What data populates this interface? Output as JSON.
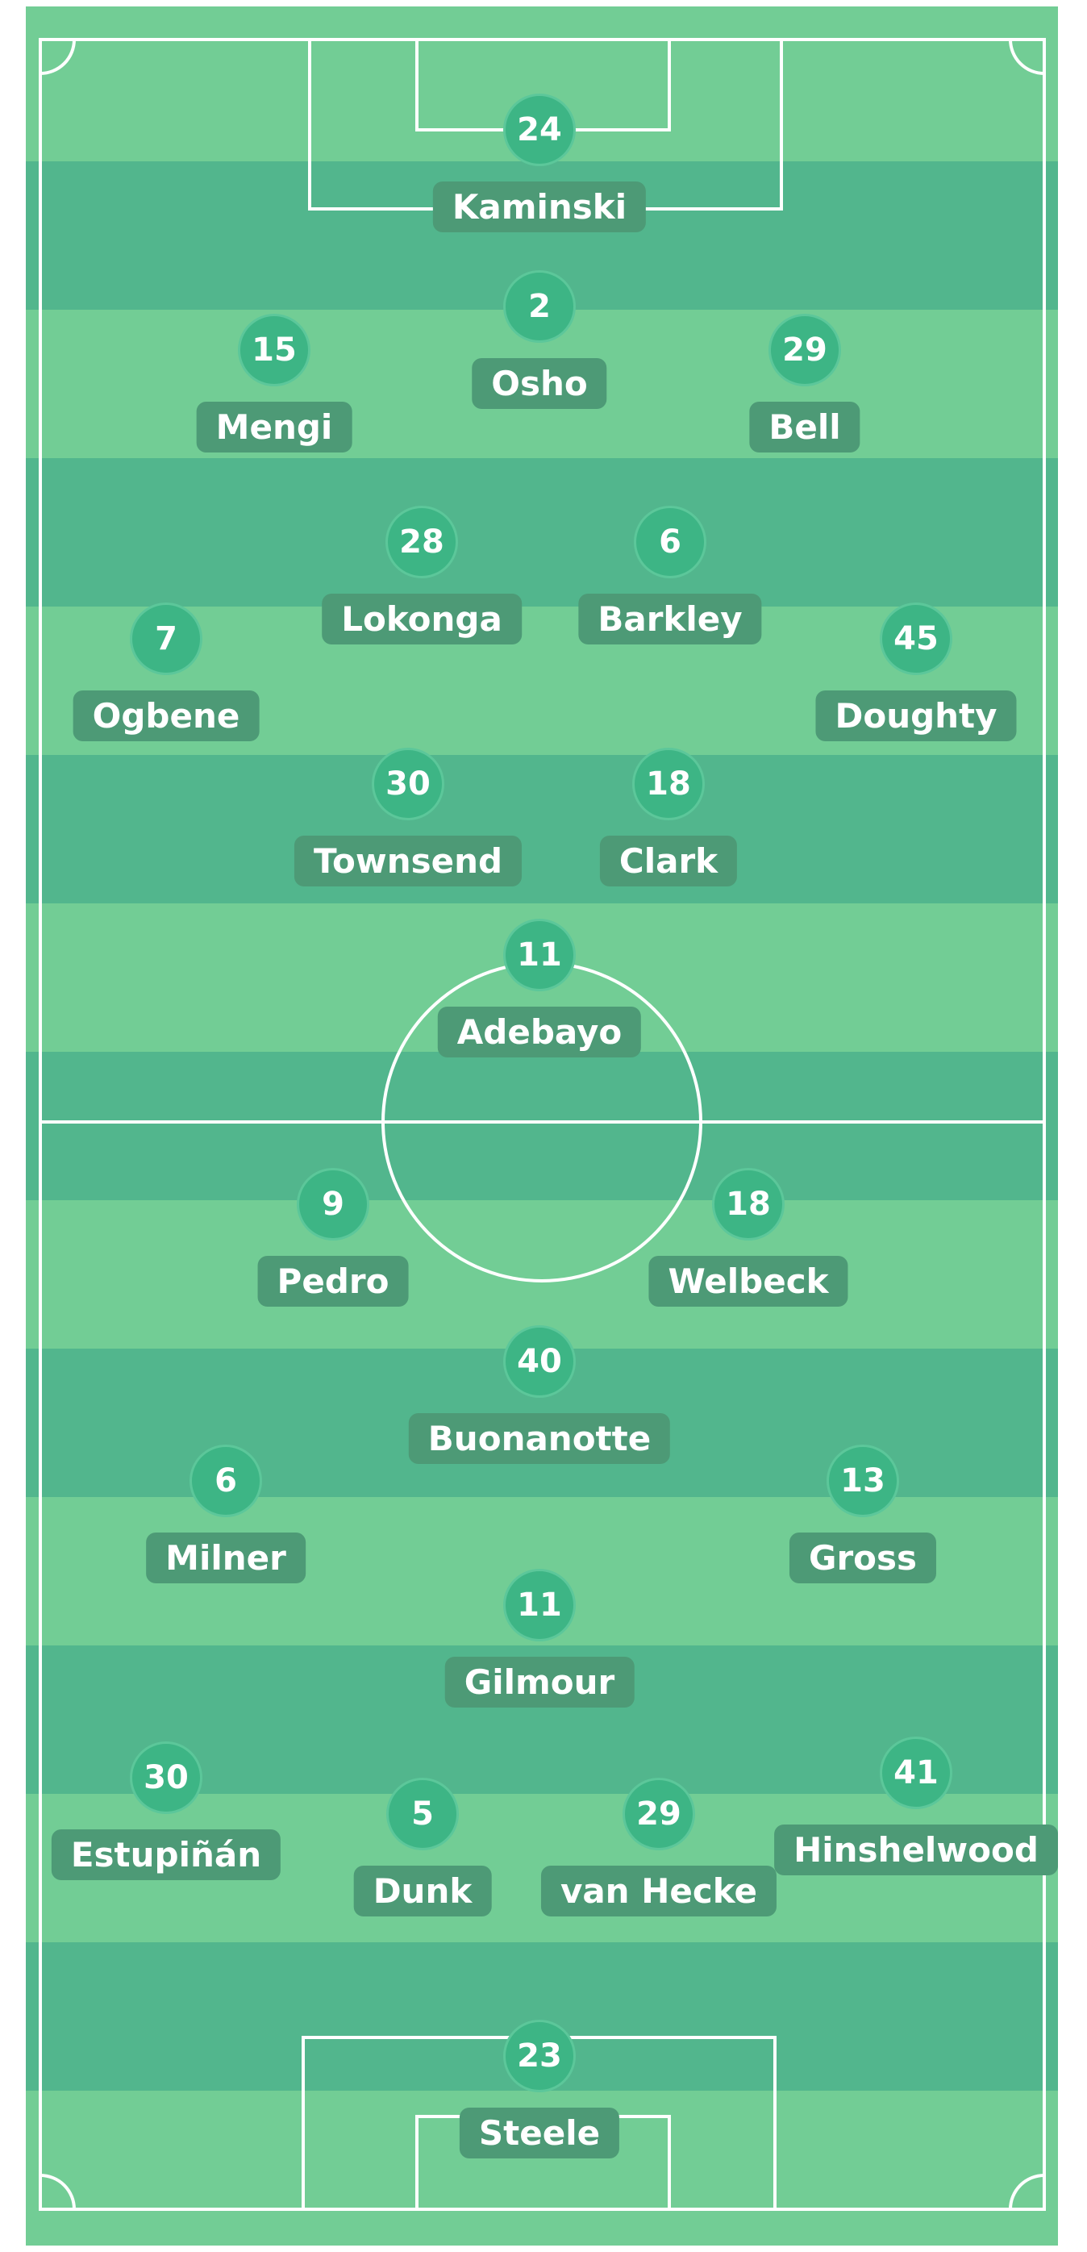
{
  "colors": {
    "stripe_light": "#72cd95",
    "stripe_dark": "#52b68d",
    "marker": "#3db585",
    "label": "#4d9a76",
    "line": "#ffffff"
  },
  "players": [
    {
      "number": "24",
      "name": "Kaminski"
    },
    {
      "number": "2",
      "name": "Osho"
    },
    {
      "number": "15",
      "name": "Mengi"
    },
    {
      "number": "29",
      "name": "Bell"
    },
    {
      "number": "28",
      "name": "Lokonga"
    },
    {
      "number": "6",
      "name": "Barkley"
    },
    {
      "number": "7",
      "name": "Ogbene"
    },
    {
      "number": "45",
      "name": "Doughty"
    },
    {
      "number": "30",
      "name": "Townsend"
    },
    {
      "number": "18",
      "name": "Clark"
    },
    {
      "number": "11",
      "name": "Adebayo"
    },
    {
      "number": "9",
      "name": "Pedro"
    },
    {
      "number": "18",
      "name": "Welbeck"
    },
    {
      "number": "40",
      "name": "Buonanotte"
    },
    {
      "number": "6",
      "name": "Milner"
    },
    {
      "number": "13",
      "name": "Gross"
    },
    {
      "number": "11",
      "name": "Gilmour"
    },
    {
      "number": "30",
      "name": "Estupiñán"
    },
    {
      "number": "5",
      "name": "Dunk"
    },
    {
      "number": "29",
      "name": "van Hecke"
    },
    {
      "number": "41",
      "name": "Hinshelwood"
    },
    {
      "number": "23",
      "name": "Steele"
    }
  ]
}
